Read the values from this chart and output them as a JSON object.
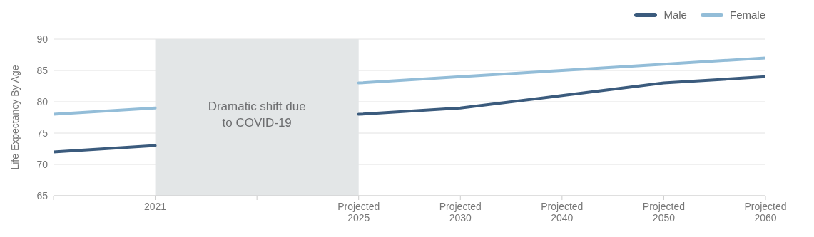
{
  "chart_data": {
    "type": "line",
    "ylabel": "Life Expectancy By Age",
    "categories": [
      null,
      "2021",
      null,
      "Projected 2025",
      "Projected 2030",
      "Projected 2040",
      "Projected 2050",
      "Projected 2060"
    ],
    "series": [
      {
        "name": "Male",
        "color": "#3b5b7d",
        "values": [
          72,
          73,
          null,
          78,
          79,
          81,
          83,
          84
        ]
      },
      {
        "name": "Female",
        "color": "#93bdd8",
        "values": [
          78,
          79,
          null,
          83,
          84,
          85,
          86,
          87
        ]
      }
    ],
    "ylim": [
      65,
      90
    ],
    "yticks": [
      65,
      70,
      75,
      80,
      85,
      90
    ],
    "bands": [
      {
        "axis": "x",
        "from": "2021",
        "to": "Projected 2025",
        "label": "Dramatic shift due to COVID-19",
        "color": "#e3e6e7"
      }
    ],
    "grid": "y",
    "legend": "top right",
    "marker": "none",
    "line_style": "solid"
  }
}
